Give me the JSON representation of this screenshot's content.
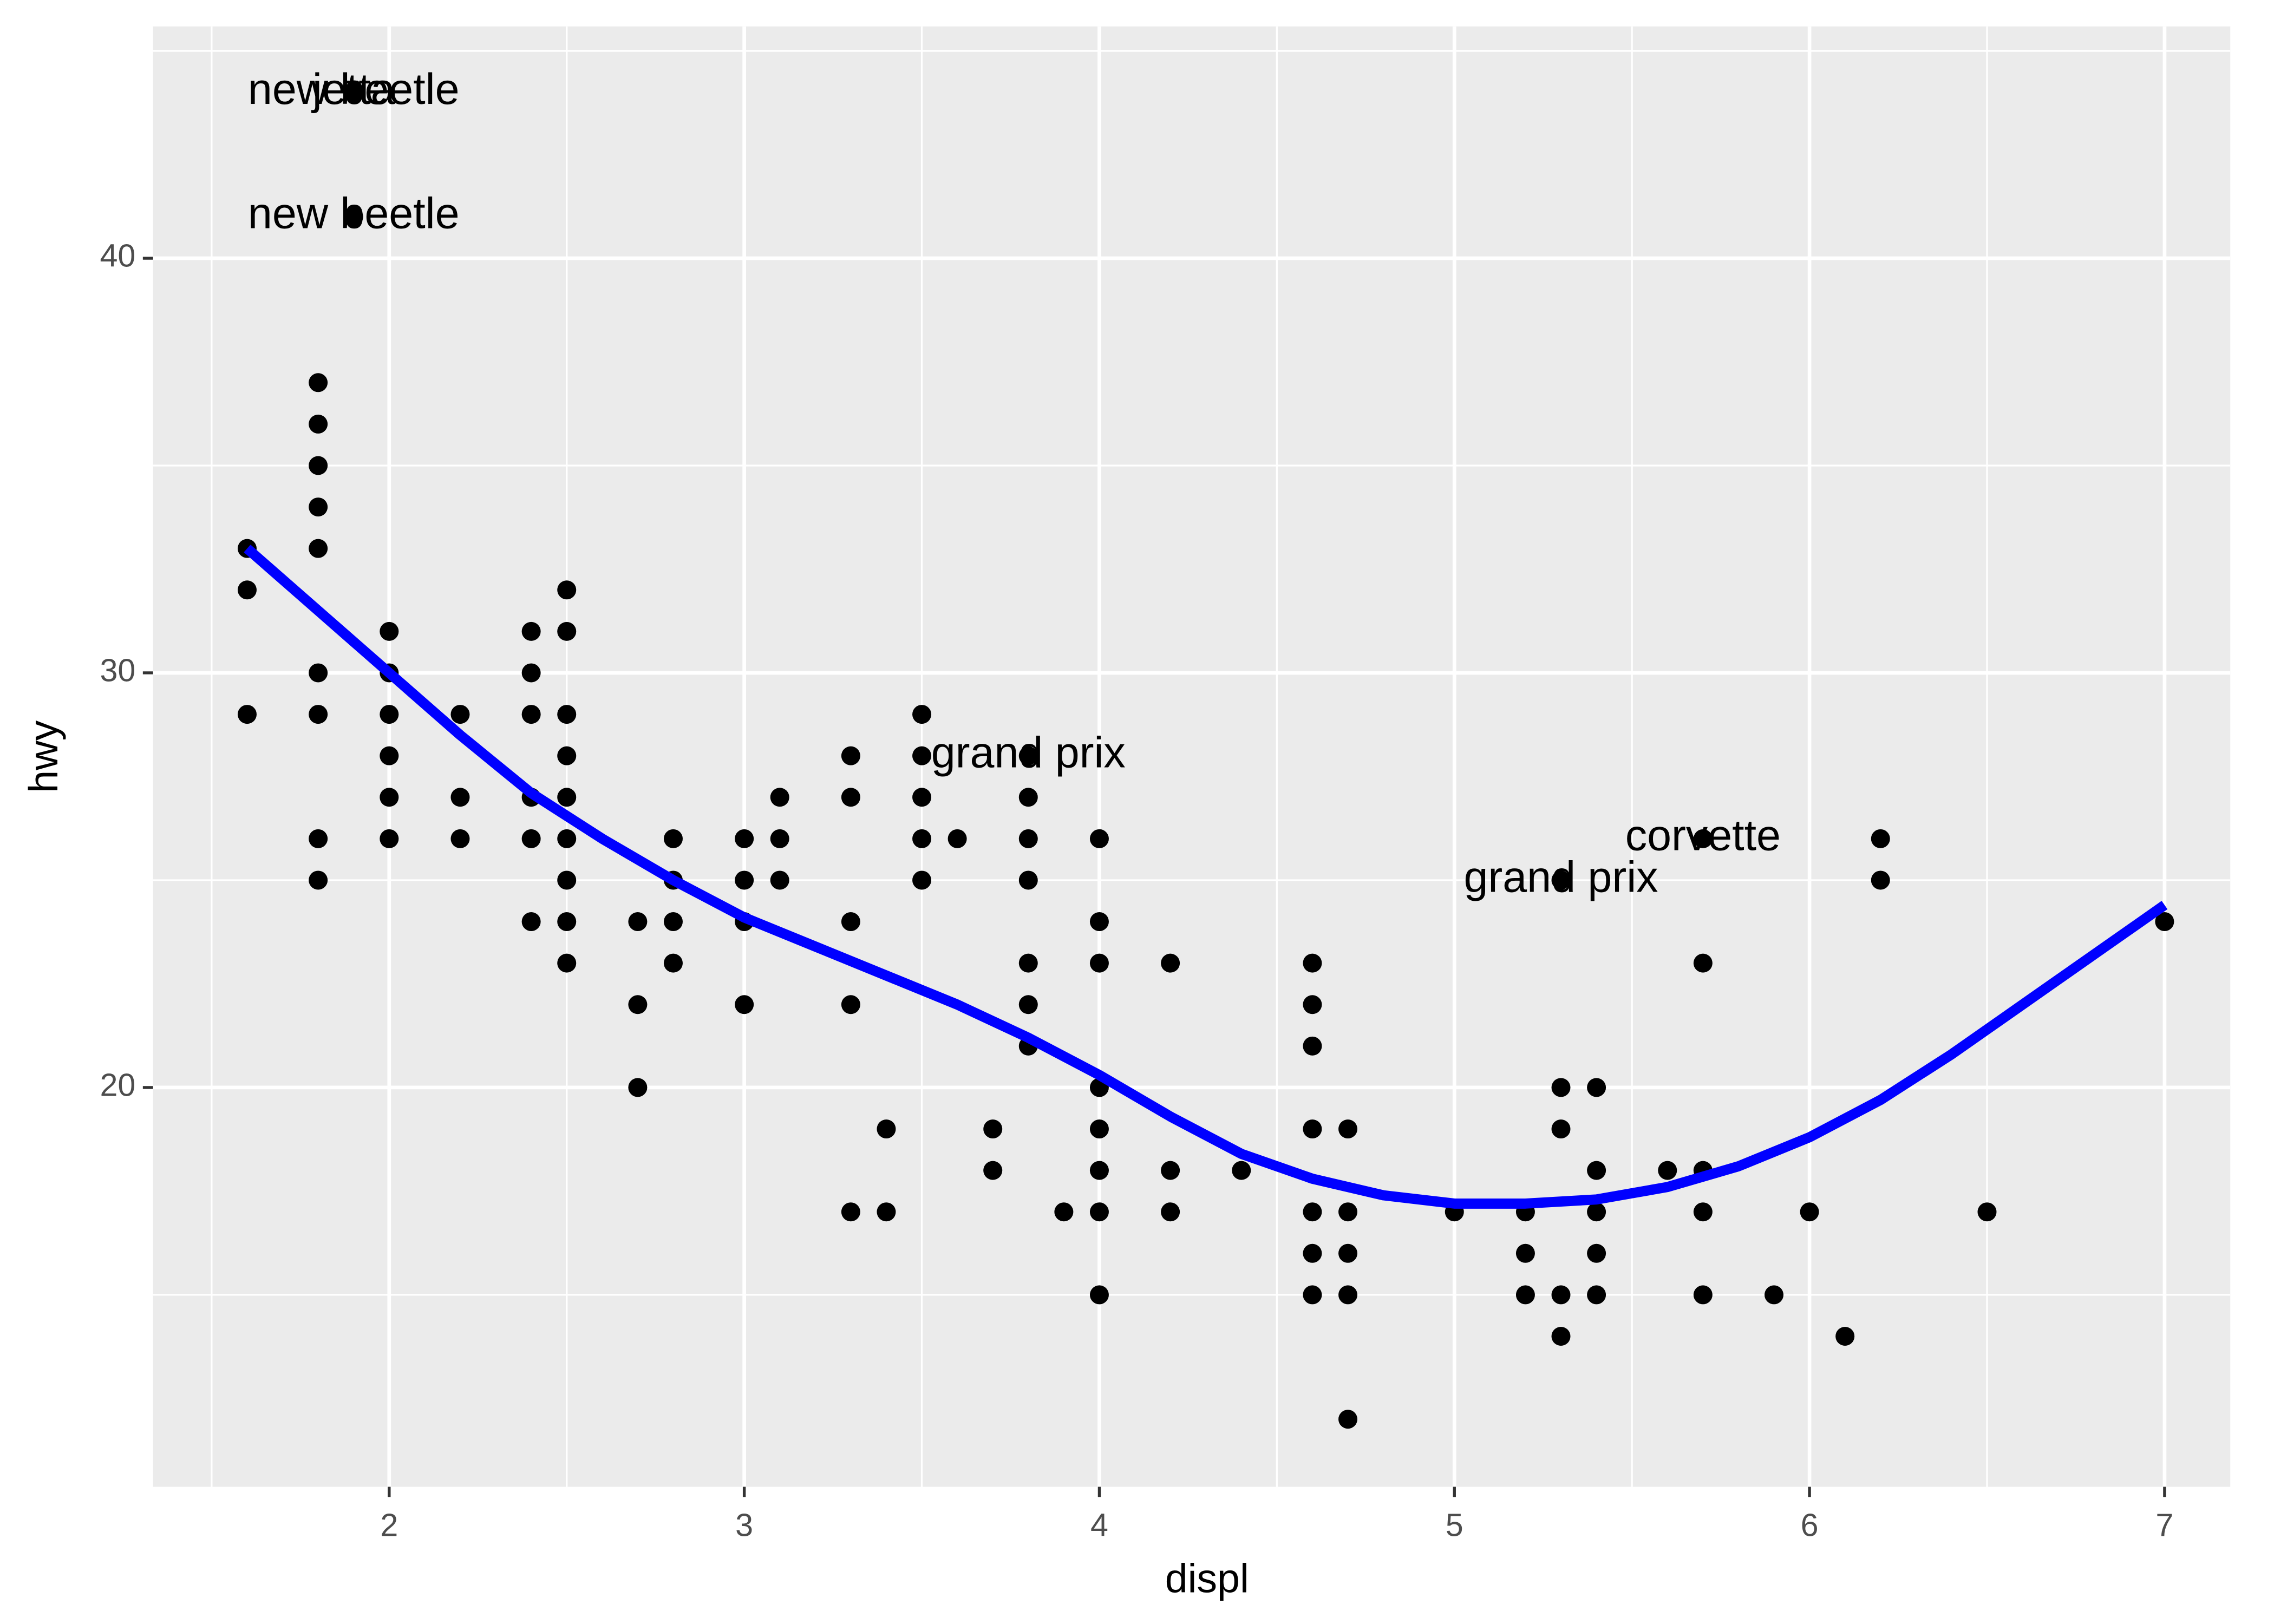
{
  "chart_data": {
    "type": "scatter",
    "x_label": "displ",
    "y_label": "hwy",
    "xlim": [
      1.335,
      7.185
    ],
    "ylim": [
      10.37,
      45.59
    ],
    "xticks": [
      2,
      3,
      4,
      5,
      6,
      7
    ],
    "yticks": [
      20,
      30,
      40
    ],
    "x_minor_ticks": [
      1.5,
      2.5,
      3.5,
      4.5,
      5.5,
      6.5
    ],
    "y_minor_ticks": [
      15,
      25,
      35,
      45
    ],
    "grid": true,
    "color": "#000000",
    "x": [
      1.6,
      1.6,
      1.6,
      1.8,
      1.8,
      1.8,
      1.8,
      1.8,
      1.8,
      1.8,
      1.8,
      1.8,
      1.9,
      1.9,
      2.0,
      2.0,
      2.0,
      2.0,
      2.0,
      2.0,
      2.2,
      2.2,
      2.2,
      2.4,
      2.4,
      2.4,
      2.4,
      2.4,
      2.4,
      2.5,
      2.5,
      2.5,
      2.5,
      2.5,
      2.5,
      2.5,
      2.5,
      2.5,
      2.7,
      2.7,
      2.7,
      2.8,
      2.8,
      2.8,
      2.8,
      3.0,
      3.0,
      3.0,
      3.0,
      3.1,
      3.1,
      3.1,
      3.3,
      3.3,
      3.3,
      3.3,
      3.3,
      3.4,
      3.4,
      3.5,
      3.5,
      3.5,
      3.5,
      3.5,
      3.6,
      3.7,
      3.7,
      3.8,
      3.8,
      3.8,
      3.8,
      3.8,
      3.8,
      3.8,
      3.9,
      4.0,
      4.0,
      4.0,
      4.0,
      4.0,
      4.0,
      4.0,
      4.0,
      4.2,
      4.2,
      4.2,
      4.4,
      4.6,
      4.6,
      4.6,
      4.6,
      4.6,
      4.6,
      4.6,
      4.7,
      4.7,
      4.7,
      4.7,
      4.7,
      5.0,
      5.2,
      5.2,
      5.2,
      5.3,
      5.3,
      5.3,
      5.3,
      5.3,
      5.4,
      5.4,
      5.4,
      5.4,
      5.4,
      5.6,
      5.7,
      5.7,
      5.7,
      5.7,
      5.7,
      5.9,
      6.0,
      6.1,
      6.2,
      6.2,
      6.5,
      7.0
    ],
    "y": [
      33,
      32,
      29,
      37,
      36,
      35,
      34,
      33,
      30,
      29,
      26,
      25,
      44,
      41,
      31,
      30,
      29,
      28,
      27,
      26,
      29,
      27,
      26,
      31,
      30,
      29,
      27,
      26,
      24,
      32,
      31,
      29,
      28,
      27,
      26,
      25,
      24,
      23,
      24,
      22,
      20,
      26,
      25,
      24,
      23,
      26,
      25,
      24,
      22,
      27,
      26,
      25,
      28,
      27,
      24,
      22,
      17,
      19,
      17,
      29,
      28,
      27,
      26,
      25,
      26,
      19,
      18,
      28,
      27,
      26,
      25,
      23,
      22,
      21,
      17,
      26,
      24,
      23,
      20,
      19,
      18,
      17,
      15,
      23,
      18,
      17,
      18,
      23,
      22,
      21,
      19,
      17,
      16,
      15,
      19,
      17,
      16,
      15,
      12,
      17,
      17,
      16,
      15,
      25,
      20,
      19,
      15,
      14,
      20,
      18,
      17,
      16,
      15,
      18,
      26,
      23,
      18,
      17,
      15,
      15,
      17,
      14,
      26,
      25,
      17,
      24
    ],
    "smooth": {
      "color": "#0000ff",
      "x": [
        1.6,
        1.8,
        2.0,
        2.2,
        2.4,
        2.6,
        2.8,
        3.0,
        3.2,
        3.4,
        3.6,
        3.8,
        4.0,
        4.2,
        4.4,
        4.6,
        4.8,
        5.0,
        5.2,
        5.4,
        5.6,
        5.8,
        6.0,
        6.2,
        6.4,
        6.6,
        6.8,
        7.0
      ],
      "values": [
        33.0,
        31.5,
        30.0,
        28.5,
        27.1,
        26.0,
        25.0,
        24.1,
        23.4,
        22.7,
        22.0,
        21.2,
        20.3,
        19.3,
        18.4,
        17.8,
        17.4,
        17.2,
        17.2,
        17.3,
        17.6,
        18.1,
        18.8,
        19.7,
        20.8,
        22.0,
        23.2,
        24.4
      ]
    },
    "labels": [
      {
        "text": "new beetle",
        "x": 1.9,
        "y": 44
      },
      {
        "text": "jetta",
        "x": 1.9,
        "y": 44
      },
      {
        "text": "new beetle",
        "x": 1.9,
        "y": 41
      },
      {
        "text": "grand prix",
        "x": 3.8,
        "y": 28
      },
      {
        "text": "corvette",
        "x": 5.7,
        "y": 26
      },
      {
        "text": "grand prix",
        "x": 5.3,
        "y": 25
      }
    ]
  }
}
